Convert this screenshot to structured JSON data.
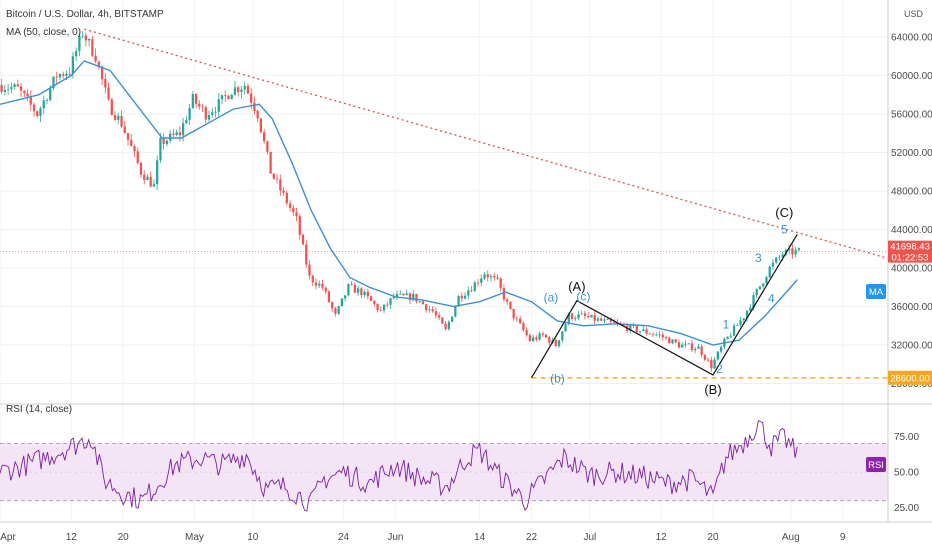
{
  "legend": {
    "symbol_title": "Bitcoin / U.S. Dollar, 4h, BITSTAMP",
    "ma_title": "MA (50, close, 0)",
    "rsi_title": "RSI (14, close)"
  },
  "currency": "USD",
  "colors": {
    "up": "#26a69a",
    "down": "#ef5350",
    "ma": "#3d8fd8",
    "trendline": "#e0504b",
    "support": "#f5a623",
    "rsi_line": "#7b1fa2",
    "rsi_band": "#f3e5f5",
    "wave_black": "#111111",
    "wave_blue": "#3d8fd8"
  },
  "price_badge": {
    "price": "41698.43",
    "countdown": "01:22:53"
  },
  "ma_badge": "MA",
  "rsi_badge": "RSI",
  "support_badge": "28600.00",
  "chart_data": [
    {
      "type": "candlestick",
      "title": "Bitcoin / U.S. Dollar, 4h, BITSTAMP",
      "ylim": [
        26500,
        67000
      ],
      "x_start": "2021-04-01",
      "x_end": "2021-08-16",
      "y_ticks": [
        28000,
        32000,
        36000,
        40000,
        44000,
        48000,
        52000,
        56000,
        60000,
        64000
      ],
      "y_tick_labels": [
        "28000.00",
        "32000.00",
        "36000.00",
        "40000.00",
        "44000.00",
        "48000.00",
        "52000.00",
        "56000.00",
        "60000.00",
        "64000.00"
      ],
      "x_tick_labels": [
        {
          "date": "2021-04-01",
          "label": "Apr"
        },
        {
          "date": "2021-04-12",
          "label": "12"
        },
        {
          "date": "2021-04-20",
          "label": "20"
        },
        {
          "date": "2021-05-01",
          "label": "May"
        },
        {
          "date": "2021-05-10",
          "label": "10"
        },
        {
          "date": "2021-05-24",
          "label": "24"
        },
        {
          "date": "2021-06-01",
          "label": "Jun"
        },
        {
          "date": "2021-06-14",
          "label": "14"
        },
        {
          "date": "2021-06-22",
          "label": "22"
        },
        {
          "date": "2021-07-01",
          "label": "Jul"
        },
        {
          "date": "2021-07-12",
          "label": "12"
        },
        {
          "date": "2021-07-20",
          "label": "20"
        },
        {
          "date": "2021-08-01",
          "label": "Aug"
        },
        {
          "date": "2021-08-09",
          "label": "9"
        }
      ],
      "price_path": [
        [
          "2021-04-01",
          59000
        ],
        [
          "2021-04-04",
          58600
        ],
        [
          "2021-04-07",
          56000
        ],
        [
          "2021-04-10",
          60000
        ],
        [
          "2021-04-12",
          60500
        ],
        [
          "2021-04-14",
          64500
        ],
        [
          "2021-04-16",
          62000
        ],
        [
          "2021-04-18",
          57000
        ],
        [
          "2021-04-20",
          55000
        ],
        [
          "2021-04-23",
          50000
        ],
        [
          "2021-04-25",
          48500
        ],
        [
          "2021-04-26",
          53000
        ],
        [
          "2021-04-29",
          54000
        ],
        [
          "2021-05-01",
          57500
        ],
        [
          "2021-05-03",
          56000
        ],
        [
          "2021-05-05",
          57000
        ],
        [
          "2021-05-07",
          58500
        ],
        [
          "2021-05-09",
          59000
        ],
        [
          "2021-05-11",
          56000
        ],
        [
          "2021-05-13",
          50000
        ],
        [
          "2021-05-15",
          47500
        ],
        [
          "2021-05-17",
          45000
        ],
        [
          "2021-05-19",
          39000
        ],
        [
          "2021-05-21",
          38000
        ],
        [
          "2021-05-23",
          35000
        ],
        [
          "2021-05-25",
          38000
        ],
        [
          "2021-05-27",
          37500
        ],
        [
          "2021-05-30",
          35500
        ],
        [
          "2021-06-01",
          37000
        ],
        [
          "2021-06-04",
          37000
        ],
        [
          "2021-06-07",
          35500
        ],
        [
          "2021-06-09",
          33500
        ],
        [
          "2021-06-11",
          37000
        ],
        [
          "2021-06-13",
          38000
        ],
        [
          "2021-06-15",
          39500
        ],
        [
          "2021-06-17",
          38500
        ],
        [
          "2021-06-19",
          35500
        ],
        [
          "2021-06-22",
          32500
        ],
        [
          "2021-06-24",
          33000
        ],
        [
          "2021-06-26",
          32000
        ],
        [
          "2021-06-28",
          35000
        ],
        [
          "2021-06-30",
          35000
        ],
        [
          "2021-07-03",
          34500
        ],
        [
          "2021-07-06",
          34000
        ],
        [
          "2021-07-09",
          33500
        ],
        [
          "2021-07-12",
          33000
        ],
        [
          "2021-07-15",
          32000
        ],
        [
          "2021-07-18",
          31700
        ],
        [
          "2021-07-20",
          29800
        ],
        [
          "2021-07-22",
          32300
        ],
        [
          "2021-07-25",
          35000
        ],
        [
          "2021-07-27",
          37500
        ],
        [
          "2021-07-29",
          40000
        ],
        [
          "2021-07-31",
          41500
        ],
        [
          "2021-08-02",
          41698
        ]
      ],
      "ma_path": [
        [
          "2021-04-01",
          57000
        ],
        [
          "2021-04-07",
          58000
        ],
        [
          "2021-04-12",
          60000
        ],
        [
          "2021-04-14",
          61500
        ],
        [
          "2021-04-18",
          60500
        ],
        [
          "2021-04-22",
          57000
        ],
        [
          "2021-04-26",
          53500
        ],
        [
          "2021-04-29",
          53500
        ],
        [
          "2021-05-03",
          55000
        ],
        [
          "2021-05-07",
          56500
        ],
        [
          "2021-05-11",
          57000
        ],
        [
          "2021-05-13",
          55500
        ],
        [
          "2021-05-16",
          51000
        ],
        [
          "2021-05-19",
          46000
        ],
        [
          "2021-05-22",
          42000
        ],
        [
          "2021-05-25",
          39000
        ],
        [
          "2021-05-28",
          38000
        ],
        [
          "2021-06-01",
          37000
        ],
        [
          "2021-06-05",
          36700
        ],
        [
          "2021-06-10",
          36000
        ],
        [
          "2021-06-14",
          36500
        ],
        [
          "2021-06-18",
          37500
        ],
        [
          "2021-06-22",
          36500
        ],
        [
          "2021-06-26",
          34500
        ],
        [
          "2021-06-30",
          34000
        ],
        [
          "2021-07-05",
          34200
        ],
        [
          "2021-07-10",
          34000
        ],
        [
          "2021-07-15",
          33200
        ],
        [
          "2021-07-20",
          32000
        ],
        [
          "2021-07-24",
          32500
        ],
        [
          "2021-07-28",
          35000
        ],
        [
          "2021-08-01",
          38000
        ],
        [
          "2021-08-02",
          38800
        ]
      ],
      "trendline": {
        "from": [
          "2021-04-14",
          64800
        ],
        "to": [
          "2021-08-16",
          41000
        ]
      },
      "support": {
        "price": 28600,
        "from": "2021-06-22"
      },
      "current_price_line": 41698.43,
      "wave_lines": [
        [
          "2021-06-22",
          28600
        ],
        [
          "2021-06-29",
          36600
        ],
        [
          "2021-07-20",
          28900
        ],
        [
          "2021-08-02",
          43500
        ]
      ],
      "wave_labels": [
        {
          "text": "(A)",
          "date": "2021-06-29",
          "price": 37600,
          "style": "black"
        },
        {
          "text": "(B)",
          "date": "2021-07-20",
          "price": 26900,
          "style": "black"
        },
        {
          "text": "(C)",
          "date": "2021-07-31",
          "price": 45300,
          "style": "black"
        },
        {
          "text": "(a)",
          "date": "2021-06-25",
          "price": 36500,
          "style": "blue"
        },
        {
          "text": "(b)",
          "date": "2021-06-26",
          "price": 28100,
          "style": "blue"
        },
        {
          "text": "(c)",
          "date": "2021-06-30",
          "price": 36600,
          "style": "blue"
        },
        {
          "text": "1",
          "date": "2021-07-22",
          "price": 33700,
          "style": "blue"
        },
        {
          "text": "2",
          "date": "2021-07-21",
          "price": 29100,
          "style": "blue"
        },
        {
          "text": "3",
          "date": "2021-07-27",
          "price": 40600,
          "style": "blue"
        },
        {
          "text": "4",
          "date": "2021-07-29",
          "price": 36400,
          "style": "blue"
        },
        {
          "text": "5",
          "date": "2021-07-31",
          "price": 43600,
          "style": "blue"
        }
      ]
    },
    {
      "type": "line",
      "title": "RSI (14, close)",
      "ylim": [
        15,
        90
      ],
      "y_ticks": [
        25,
        50,
        75
      ],
      "y_tick_labels": [
        "25.00",
        "50.00",
        "75.00"
      ],
      "band": [
        30,
        70
      ],
      "rsi_path": [
        [
          "2021-04-01",
          50
        ],
        [
          "2021-04-05",
          55
        ],
        [
          "2021-04-09",
          62
        ],
        [
          "2021-04-13",
          70
        ],
        [
          "2021-04-15",
          75
        ],
        [
          "2021-04-17",
          45
        ],
        [
          "2021-04-20",
          35
        ],
        [
          "2021-04-23",
          30
        ],
        [
          "2021-04-25",
          40
        ],
        [
          "2021-04-28",
          55
        ],
        [
          "2021-05-02",
          60
        ],
        [
          "2021-05-05",
          55
        ],
        [
          "2021-05-09",
          62
        ],
        [
          "2021-05-12",
          38
        ],
        [
          "2021-05-15",
          40
        ],
        [
          "2021-05-19",
          28
        ],
        [
          "2021-05-21",
          45
        ],
        [
          "2021-05-24",
          50
        ],
        [
          "2021-05-28",
          42
        ],
        [
          "2021-06-01",
          55
        ],
        [
          "2021-06-05",
          45
        ],
        [
          "2021-06-09",
          40
        ],
        [
          "2021-06-12",
          60
        ],
        [
          "2021-06-14",
          65
        ],
        [
          "2021-06-17",
          48
        ],
        [
          "2021-06-21",
          30
        ],
        [
          "2021-06-24",
          45
        ],
        [
          "2021-06-27",
          60
        ],
        [
          "2021-07-01",
          48
        ],
        [
          "2021-07-05",
          50
        ],
        [
          "2021-07-09",
          47
        ],
        [
          "2021-07-13",
          42
        ],
        [
          "2021-07-17",
          45
        ],
        [
          "2021-07-20",
          32
        ],
        [
          "2021-07-22",
          60
        ],
        [
          "2021-07-25",
          72
        ],
        [
          "2021-07-27",
          85
        ],
        [
          "2021-07-29",
          68
        ],
        [
          "2021-07-31",
          74
        ],
        [
          "2021-08-02",
          62
        ]
      ]
    }
  ]
}
